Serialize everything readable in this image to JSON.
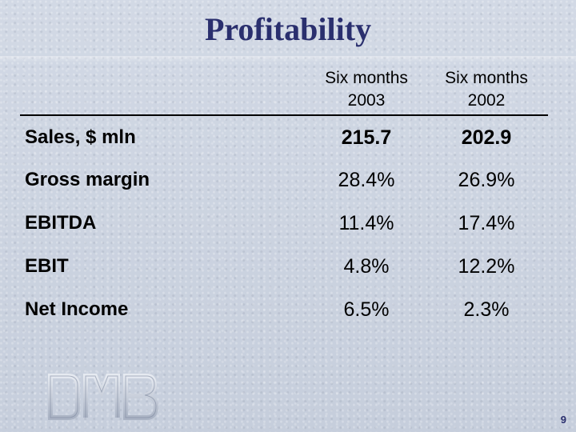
{
  "title": "Profitability",
  "columns": [
    {
      "line1": "Six months",
      "line2": "2003"
    },
    {
      "line1": "Six months",
      "line2": "2002"
    }
  ],
  "rows": [
    {
      "label": "Sales, $ mln",
      "values": [
        "215.7",
        "202.9"
      ]
    },
    {
      "label": "Gross margin",
      "values": [
        "28.4%",
        "26.9%"
      ]
    },
    {
      "label": "EBITDA",
      "values": [
        "11.4%",
        "17.4%"
      ]
    },
    {
      "label": "EBIT",
      "values": [
        "4.8%",
        "12.2%"
      ]
    },
    {
      "label": "Net Income",
      "values": [
        "6.5%",
        "2.3%"
      ]
    }
  ],
  "logo": {
    "text": "DMB"
  },
  "page_number": "9",
  "colors": {
    "title": "#2a2f6e",
    "background": "#cbd3e0",
    "text": "#000000"
  }
}
